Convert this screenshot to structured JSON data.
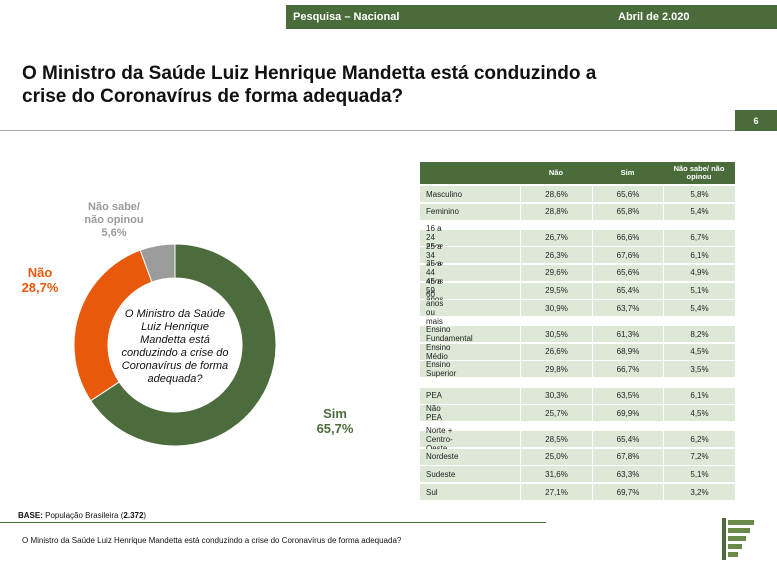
{
  "header": {
    "survey": "Pesquisa – Nacional",
    "date": "Abril de 2.020",
    "page": "6"
  },
  "title": "O Ministro da Saúde Luiz Henrique Mandetta está conduzindo a crise do Coronavírus de forma adequada?",
  "chart_data": {
    "type": "pie",
    "donut": true,
    "categories": [
      "Sim",
      "Não",
      "Não sabe/ não opinou"
    ],
    "values": [
      65.7,
      28.7,
      5.6
    ],
    "value_labels": [
      "65,7%",
      "28,7%",
      "5,6%"
    ],
    "colors": [
      "#4d6c3d",
      "#e8590c",
      "#9b9b9b"
    ],
    "center_text": "O Ministro da Saúde Luiz Henrique Mandetta está conduzindo a crise do Coronavírus de forma adequada?"
  },
  "table": {
    "columns": [
      "Não",
      "Sim",
      "Não sabe/ não opinou"
    ],
    "groups": [
      [
        {
          "label": "Masculino",
          "values": [
            "28,6%",
            "65,6%",
            "5,8%"
          ]
        },
        {
          "label": "Feminino",
          "values": [
            "28,8%",
            "65,8%",
            "5,4%"
          ]
        }
      ],
      [
        {
          "label": "16 a 24 anos",
          "values": [
            "26,7%",
            "66,6%",
            "6,7%"
          ]
        },
        {
          "label": "25 a 34 anos",
          "values": [
            "26,3%",
            "67,6%",
            "6,1%"
          ]
        },
        {
          "label": "35 a 44 anos",
          "values": [
            "29,6%",
            "65,6%",
            "4,9%"
          ]
        },
        {
          "label": "45 a 59 anos",
          "values": [
            "29,5%",
            "65,4%",
            "5,1%"
          ]
        },
        {
          "label": "60 anos ou mais",
          "values": [
            "30,9%",
            "63,7%",
            "5,4%"
          ]
        }
      ],
      [
        {
          "label": "Ensino Fundamental",
          "values": [
            "30,5%",
            "61,3%",
            "8,2%"
          ]
        },
        {
          "label": "Ensino Médio",
          "values": [
            "26,6%",
            "68,9%",
            "4,5%"
          ]
        },
        {
          "label": "Ensino Superior",
          "values": [
            "29,8%",
            "66,7%",
            "3,5%"
          ]
        }
      ],
      [
        {
          "label": "PEA",
          "values": [
            "30,3%",
            "63,5%",
            "6,1%"
          ]
        },
        {
          "label": "Não PEA",
          "values": [
            "25,7%",
            "69,9%",
            "4,5%"
          ]
        }
      ],
      [
        {
          "label": "Norte + Centro-Oeste",
          "values": [
            "28,5%",
            "65,4%",
            "6,2%"
          ]
        },
        {
          "label": "Nordeste",
          "values": [
            "25,0%",
            "67,8%",
            "7,2%"
          ]
        },
        {
          "label": "Sudeste",
          "values": [
            "31,6%",
            "63,3%",
            "5,1%"
          ]
        },
        {
          "label": "Sul",
          "values": [
            "27,1%",
            "69,7%",
            "3,2%"
          ]
        }
      ]
    ]
  },
  "base": {
    "label": "BASE:",
    "text": "População Brasileira (",
    "n": "2.372",
    "close": ")"
  },
  "footnote": "O Ministro da Saúde Luiz Henrique Mandetta está conduzindo a crise do Coronavírus de forma adequada?"
}
